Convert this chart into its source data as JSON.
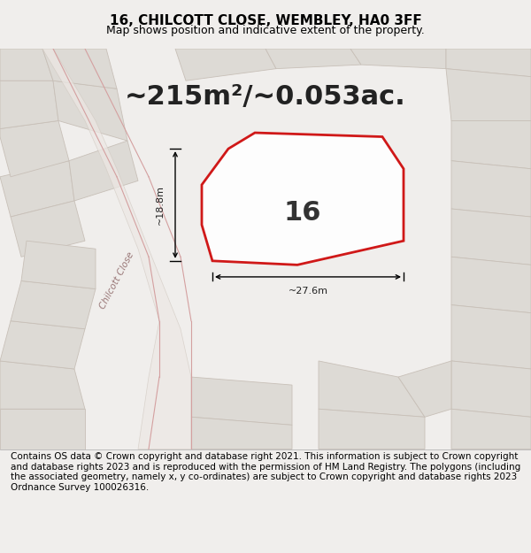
{
  "title": "16, CHILCOTT CLOSE, WEMBLEY, HA0 3FF",
  "subtitle": "Map shows position and indicative extent of the property.",
  "area_text": "~215m²/~0.053ac.",
  "label_16": "16",
  "dim_width": "~27.6m",
  "dim_height": "~18.8m",
  "footer": "Contains OS data © Crown copyright and database right 2021. This information is subject to Crown copyright and database rights 2023 and is reproduced with the permission of HM Land Registry. The polygons (including the associated geometry, namely x, y co-ordinates) are subject to Crown copyright and database rights 2023 Ordnance Survey 100026316.",
  "bg_color": "#f0eeec",
  "map_bg": "#f0eeec",
  "plot_outline_color": "#cc0000",
  "building_color": "#dddad5",
  "building_outline": "#c8c0b8",
  "dim_line_color": "#000000",
  "title_fontsize": 11,
  "subtitle_fontsize": 9,
  "area_fontsize": 22,
  "label_fontsize": 22,
  "dim_fontsize": 8,
  "street_fontsize": 7.5,
  "footer_fontsize": 7.5,
  "figwidth": 6.0,
  "figheight": 6.25
}
